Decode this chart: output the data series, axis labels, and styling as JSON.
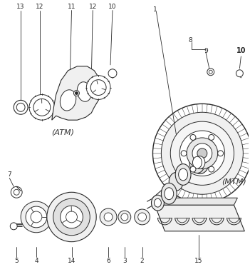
{
  "bg_color": "#ffffff",
  "line_color": "#2a2a2a",
  "gray_color": "#888888",
  "light_gray": "#cccccc",
  "atm_label": "(ATM)",
  "mtm_label": "(MTM)",
  "figsize": [
    3.51,
    3.74
  ],
  "dpi": 100
}
